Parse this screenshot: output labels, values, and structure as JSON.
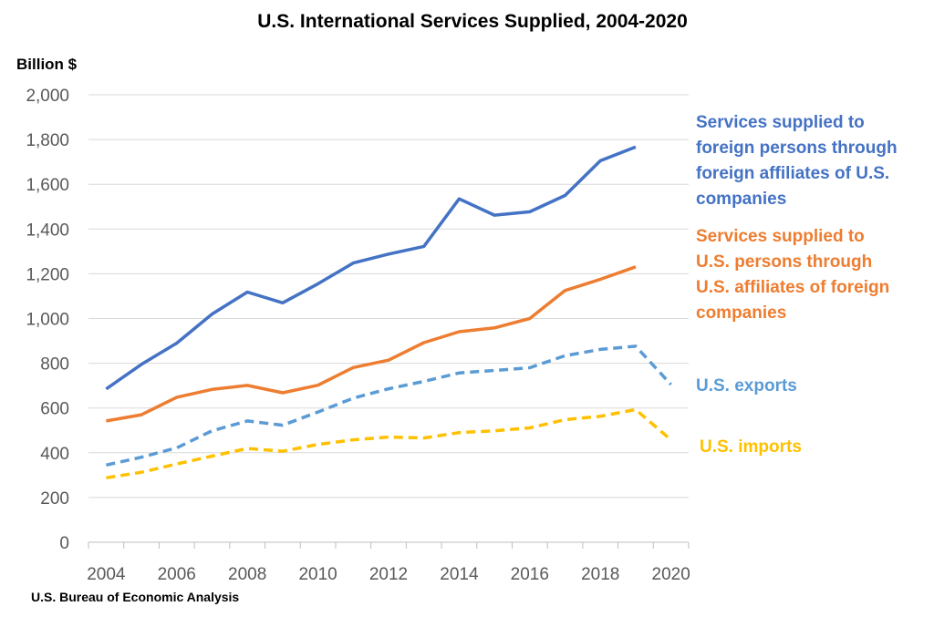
{
  "chart_data": {
    "type": "line",
    "title": "U.S. International Services Supplied, 2004-2020",
    "ylabel": "Billion $",
    "xlabel": "",
    "source": "U.S. Bureau of Economic Analysis",
    "x": [
      2004,
      2005,
      2006,
      2007,
      2008,
      2009,
      2010,
      2011,
      2012,
      2013,
      2014,
      2015,
      2016,
      2017,
      2018,
      2019,
      2020
    ],
    "x_ticks": [
      "2004",
      "2006",
      "2008",
      "2010",
      "2012",
      "2014",
      "2016",
      "2018",
      "2020"
    ],
    "y_ticks": [
      "0",
      "200",
      "400",
      "600",
      "800",
      "1,000",
      "1,200",
      "1,400",
      "1,600",
      "1,800",
      "2,000"
    ],
    "ylim": [
      0,
      2000
    ],
    "xlim": [
      2003.5,
      2020.5
    ],
    "grid": true,
    "legend": "direct labels at right",
    "series": [
      {
        "name": "Services supplied to foreign persons through foreign affiliates of U.S. companies",
        "label_lines": [
          "Services supplied to",
          "foreign persons through",
          "foreign affiliates of U.S.",
          "companies"
        ],
        "color": "#4472C4",
        "style": "solid",
        "values": [
          685,
          795,
          890,
          1020,
          1118,
          1070,
          1155,
          1248,
          1288,
          1322,
          1535,
          1462,
          1477,
          1550,
          1705,
          1767,
          null
        ]
      },
      {
        "name": "Services supplied to U.S. persons through U.S. affiliates of foreign companies",
        "label_lines": [
          "Services supplied to",
          "U.S. persons through",
          "U.S. affiliates of foreign",
          "companies"
        ],
        "color": "#ED7D31",
        "style": "solid",
        "values": [
          542,
          570,
          648,
          683,
          701,
          668,
          702,
          781,
          814,
          892,
          941,
          958,
          1000,
          1125,
          1175,
          1231,
          null
        ]
      },
      {
        "name": "U.S. exports",
        "label_lines": [
          "U.S. exports"
        ],
        "color": "#5B9BD5",
        "style": "dashed",
        "values": [
          345,
          380,
          422,
          498,
          542,
          523,
          582,
          644,
          686,
          719,
          757,
          768,
          780,
          834,
          862,
          876,
          705
        ]
      },
      {
        "name": "U.S. imports",
        "label_lines": [
          "U.S. imports"
        ],
        "color": "#FFC000",
        "style": "dashed",
        "values": [
          288,
          313,
          350,
          385,
          419,
          407,
          437,
          458,
          470,
          466,
          490,
          498,
          511,
          548,
          563,
          593,
          458
        ]
      }
    ]
  }
}
